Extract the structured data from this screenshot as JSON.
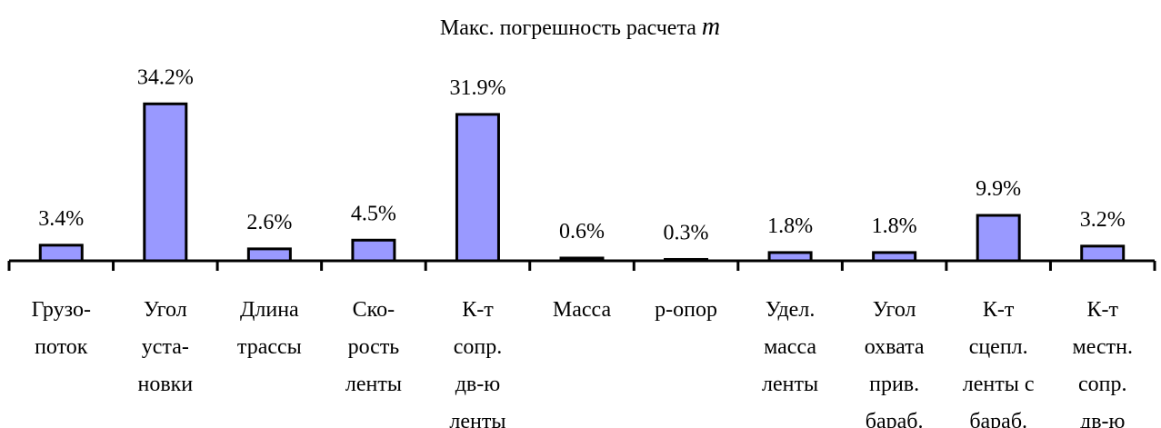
{
  "chart_data": {
    "type": "bar",
    "title": "Макс. погрешность расчета",
    "title_variable": "m",
    "categories": [
      [
        "Грузо-",
        "поток"
      ],
      [
        "Угол",
        "уста-",
        "новки"
      ],
      [
        "Длина",
        "трассы"
      ],
      [
        "Ско-",
        "рость",
        "ленты"
      ],
      [
        "К-т",
        "сопр.",
        "дв-ю",
        "ленты"
      ],
      [
        "Масса"
      ],
      [
        "р-опор"
      ],
      [
        "Удел.",
        "масса",
        "ленты"
      ],
      [
        "Угол",
        "охвата",
        "прив.",
        "бараб."
      ],
      [
        "К-т",
        "сцепл.",
        "ленты с",
        "бараб."
      ],
      [
        "К-т",
        "местн.",
        "сопр.",
        "дв-ю"
      ]
    ],
    "values": [
      3.4,
      34.2,
      2.6,
      4.5,
      31.9,
      0.6,
      0.3,
      1.8,
      1.8,
      9.9,
      3.2
    ],
    "value_labels": [
      "3.4%",
      "34.2%",
      "2.6%",
      "4.5%",
      "31.9%",
      "0.6%",
      "0.3%",
      "1.8%",
      "1.8%",
      "9.9%",
      "3.2%"
    ],
    "color": "#9999ff",
    "ylim": [
      0,
      40
    ]
  }
}
